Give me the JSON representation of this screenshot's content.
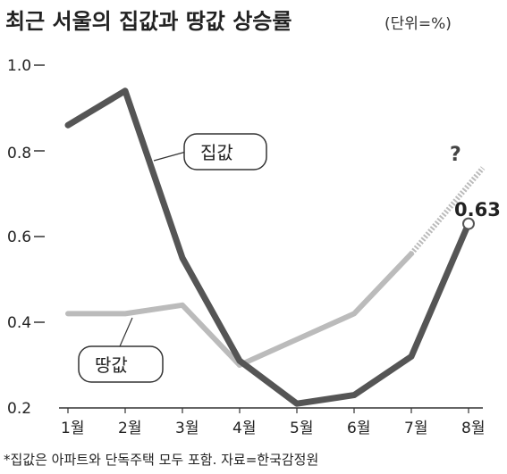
{
  "chart_data": {
    "type": "line",
    "title": "최근 서울의 집값과 땅값 상승률",
    "unit": "(단위=%)",
    "categories": [
      "1월",
      "2월",
      "3월",
      "4월",
      "5월",
      "6월",
      "7월",
      "8월"
    ],
    "ylim": [
      0.2,
      1.0
    ],
    "yticks": [
      "0.2",
      "0.4",
      "0.6",
      "0.8",
      "1.0"
    ],
    "yticks_values": [
      0.2,
      0.4,
      0.6,
      0.8,
      1.0
    ],
    "grid": false,
    "series": [
      {
        "name": "집값",
        "values": [
          0.86,
          0.94,
          0.55,
          0.31,
          0.21,
          0.23,
          0.32,
          0.63
        ],
        "color": "#555555",
        "end_label": "0.63"
      },
      {
        "name": "땅값",
        "values": [
          0.42,
          0.42,
          0.44,
          0.3,
          0.36,
          0.42,
          0.56,
          null
        ],
        "color": "#bbbbbb",
        "projection": {
          "to_x_fraction": 7.25,
          "to_value": 0.76,
          "label": "?"
        }
      }
    ],
    "footnote": "*집값은 아파트와 단독주택 모두 포함. 자료=한국감정원"
  }
}
